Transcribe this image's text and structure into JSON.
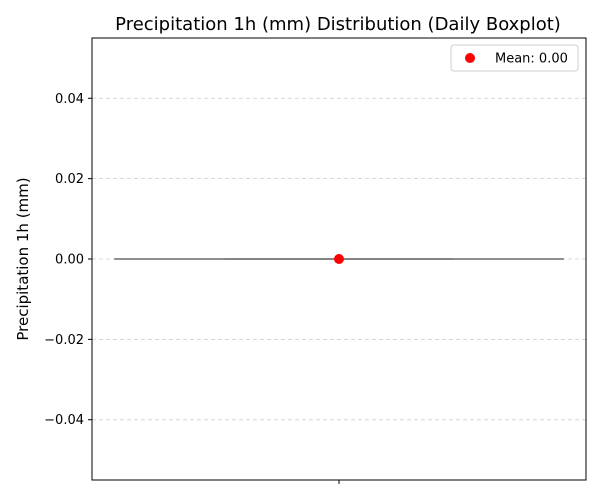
{
  "chart_data": {
    "type": "box",
    "title": "Precipitation 1h (mm) Distribution (Daily Boxplot)",
    "xlabel": "",
    "ylabel": "Precipitation 1h (mm)",
    "ylim": [
      -0.055,
      0.055
    ],
    "yticks": [
      -0.04,
      -0.02,
      0.0,
      0.02,
      0.04
    ],
    "ytick_labels": [
      "−0.04",
      "−0.02",
      "0.00",
      "0.02",
      "0.04"
    ],
    "grid": "y-dashed",
    "legend_position": "top-right",
    "colors": {
      "box": "#808080",
      "mean": "#ff0000",
      "grid": "#cccccc",
      "axes": "#000000"
    },
    "boxes": [
      {
        "whisker_low": 0.0,
        "q1": 0.0,
        "median": 0.0,
        "q3": 0.0,
        "whisker_high": 0.0,
        "mean": 0.0
      }
    ],
    "legend": [
      {
        "label": "Mean: 0.00",
        "marker": "circle",
        "color": "#ff0000"
      }
    ]
  }
}
